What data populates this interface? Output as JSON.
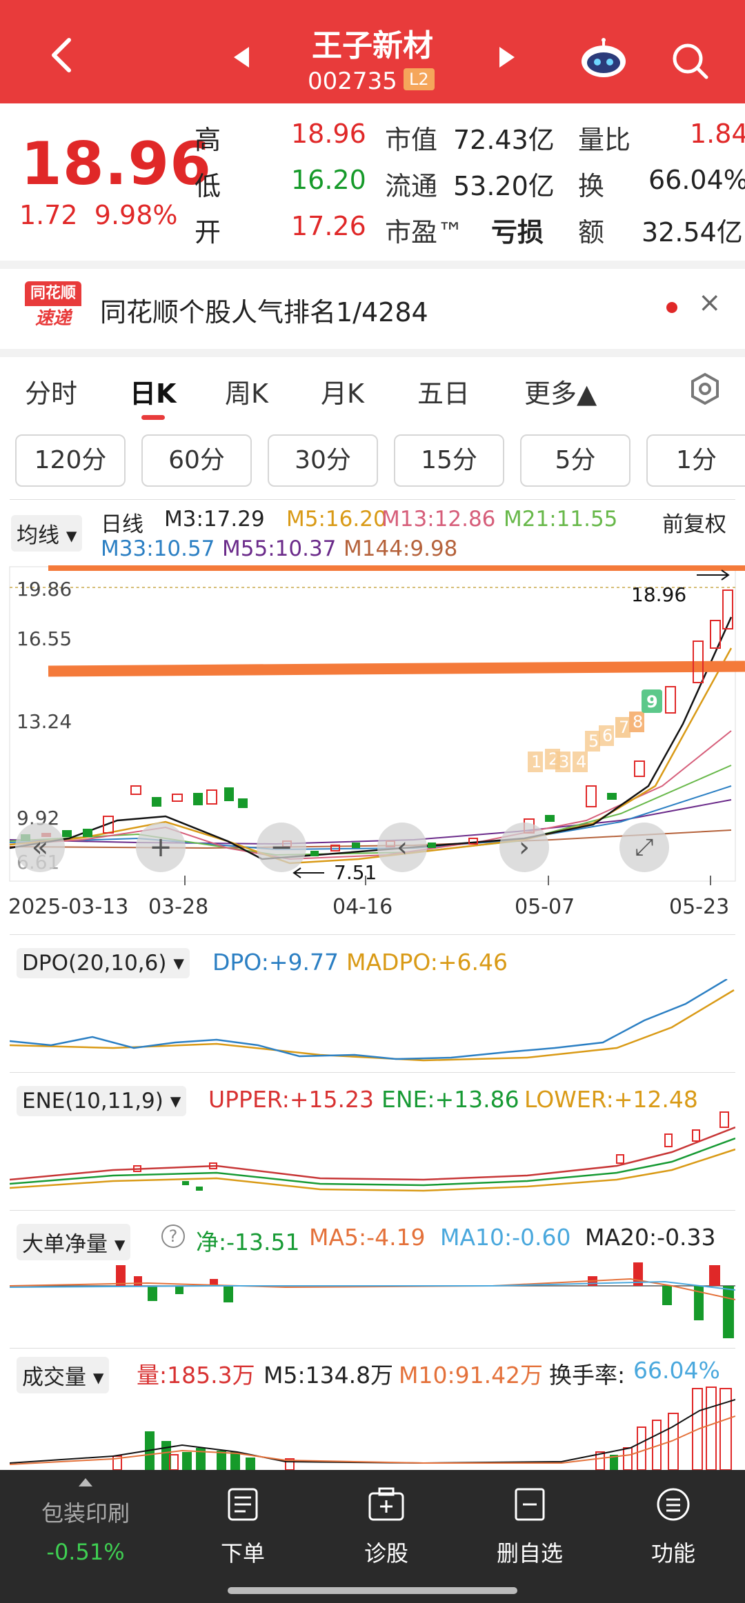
{
  "header": {
    "title": "王子新材",
    "code": "002735",
    "badge": "L2",
    "icons": [
      "back-icon",
      "prev-icon",
      "next-icon",
      "robot-assistant-icon",
      "search-icon"
    ]
  },
  "quote": {
    "price": "18.96",
    "change": "1.72",
    "change_pct": "9.98%",
    "rows": [
      {
        "l1": "高",
        "v1": "18.96",
        "l2": "市值",
        "v2": "72.43亿",
        "l3": "量比",
        "v3": "1.84"
      },
      {
        "l1": "低",
        "v1": "16.20",
        "l2": "流通",
        "v2": "53.20亿",
        "l3": "换",
        "v3": "66.04%"
      },
      {
        "l1": "开",
        "v1": "17.26",
        "l2": "市盈™",
        "v2": "亏损",
        "l3": "额",
        "v3": "32.54亿"
      }
    ]
  },
  "notice": {
    "logo_top": "同花顺",
    "logo_bottom": "速递",
    "text": "同花顺个股人气排名1/4284",
    "close": "×"
  },
  "tabs": [
    "分时",
    "日K",
    "周K",
    "月K",
    "五日",
    "更多▲"
  ],
  "active_tab": "日K",
  "minute_buttons": [
    "120分",
    "60分",
    "30分",
    "15分",
    "5分",
    "1分"
  ],
  "ma_row": {
    "selector": "均线",
    "daily": "日线",
    "m3": "M3:17.29",
    "m5": "M5:16.20",
    "m13": "M13:12.86",
    "m21": "M21:11.55",
    "adjust": "前复权",
    "m33": "M33:10.57",
    "m55": "M55:10.37",
    "m144": "M144:9.98"
  },
  "kline": {
    "y_ticks": [
      "19.86",
      "16.55",
      "13.24",
      "9.92",
      "6.61"
    ],
    "high_label": "18.96",
    "low_label": "7.51",
    "dates": [
      "2025-03-13",
      "03-28",
      "04-16",
      "05-07",
      "05-23"
    ],
    "tags": [
      "1",
      "2",
      "3",
      "4",
      "5",
      "6",
      "7",
      "8",
      "9"
    ]
  },
  "dpo": {
    "selector": "DPO(20,10,6)",
    "dpo": "DPO:+9.77",
    "madpo": "MADPO:+6.46"
  },
  "ene": {
    "selector": "ENE(10,11,9)",
    "upper": "UPPER:+15.23",
    "ene": "ENE:+13.86",
    "lower": "LOWER:+12.48"
  },
  "bigorder": {
    "selector": "大单净量",
    "net": "净:-13.51",
    "ma5": "MA5:-4.19",
    "ma10": "MA10:-0.60",
    "ma20": "MA20:-0.33"
  },
  "volume": {
    "selector": "成交量",
    "vol": "量:185.3万",
    "m5": "M5:134.8万",
    "m10": "M10:91.42万",
    "turnover_label": "换手率:",
    "turnover": "66.04%"
  },
  "bottom_bar": {
    "sector": "包装印刷",
    "sector_chg": "-0.51%",
    "items": [
      "下单",
      "诊股",
      "删自选",
      "功能"
    ]
  },
  "colors": {
    "header_red": "#e83b3b",
    "up_red": "#e02828",
    "down_green": "#169a2a",
    "resistance_line": "#f47a3a"
  }
}
